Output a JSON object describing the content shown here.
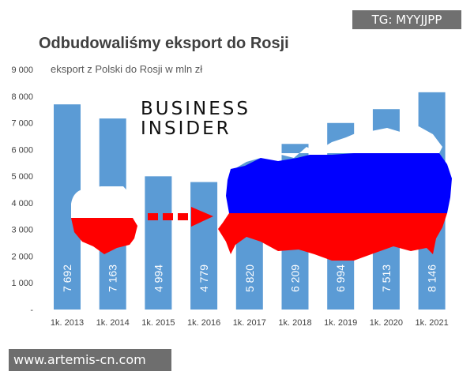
{
  "chart_data": {
    "type": "bar",
    "title": "Odbudowaliśmy eksport do Rosji",
    "subtitle": "eksport z Polski do Rosji w mln zł",
    "categories": [
      "1k. 2013",
      "1k. 2014",
      "1k. 2015",
      "1k. 2016",
      "1k. 2017",
      "1k. 2018",
      "1k. 2019",
      "1k. 2020",
      "1k. 2021"
    ],
    "values": [
      7692,
      7163,
      4994,
      4779,
      5820,
      6209,
      6994,
      7513,
      8146
    ],
    "value_labels": [
      "7 692",
      "7 163",
      "4 994",
      "4 779",
      "5 820",
      "6 209",
      "6 994",
      "7 513",
      "8 146"
    ],
    "y_ticks": [
      {
        "value": 9000,
        "label": "9 000"
      },
      {
        "value": 8000,
        "label": "8 000"
      },
      {
        "value": 7000,
        "label": "7 000"
      },
      {
        "value": 6000,
        "label": "6 000"
      },
      {
        "value": 5000,
        "label": "5 000"
      },
      {
        "value": 4000,
        "label": "4 000"
      },
      {
        "value": 3000,
        "label": "3 000"
      },
      {
        "value": 2000,
        "label": "2 000"
      },
      {
        "value": 1000,
        "label": "1 000"
      },
      {
        "value": 0,
        "label": "-"
      }
    ],
    "ylim": [
      0,
      9000
    ],
    "grid": false,
    "bar_color": "#5b9bd5"
  },
  "branding": {
    "logo_line1": "BUSINESS",
    "logo_line2": "INSIDER"
  },
  "watermarks": {
    "tg": "TG: MYYJJPP",
    "url": "www.artemis-cn.com"
  },
  "flag_colors": {
    "white": "#ffffff",
    "red": "#ff0000",
    "blue": "#0000ff"
  }
}
